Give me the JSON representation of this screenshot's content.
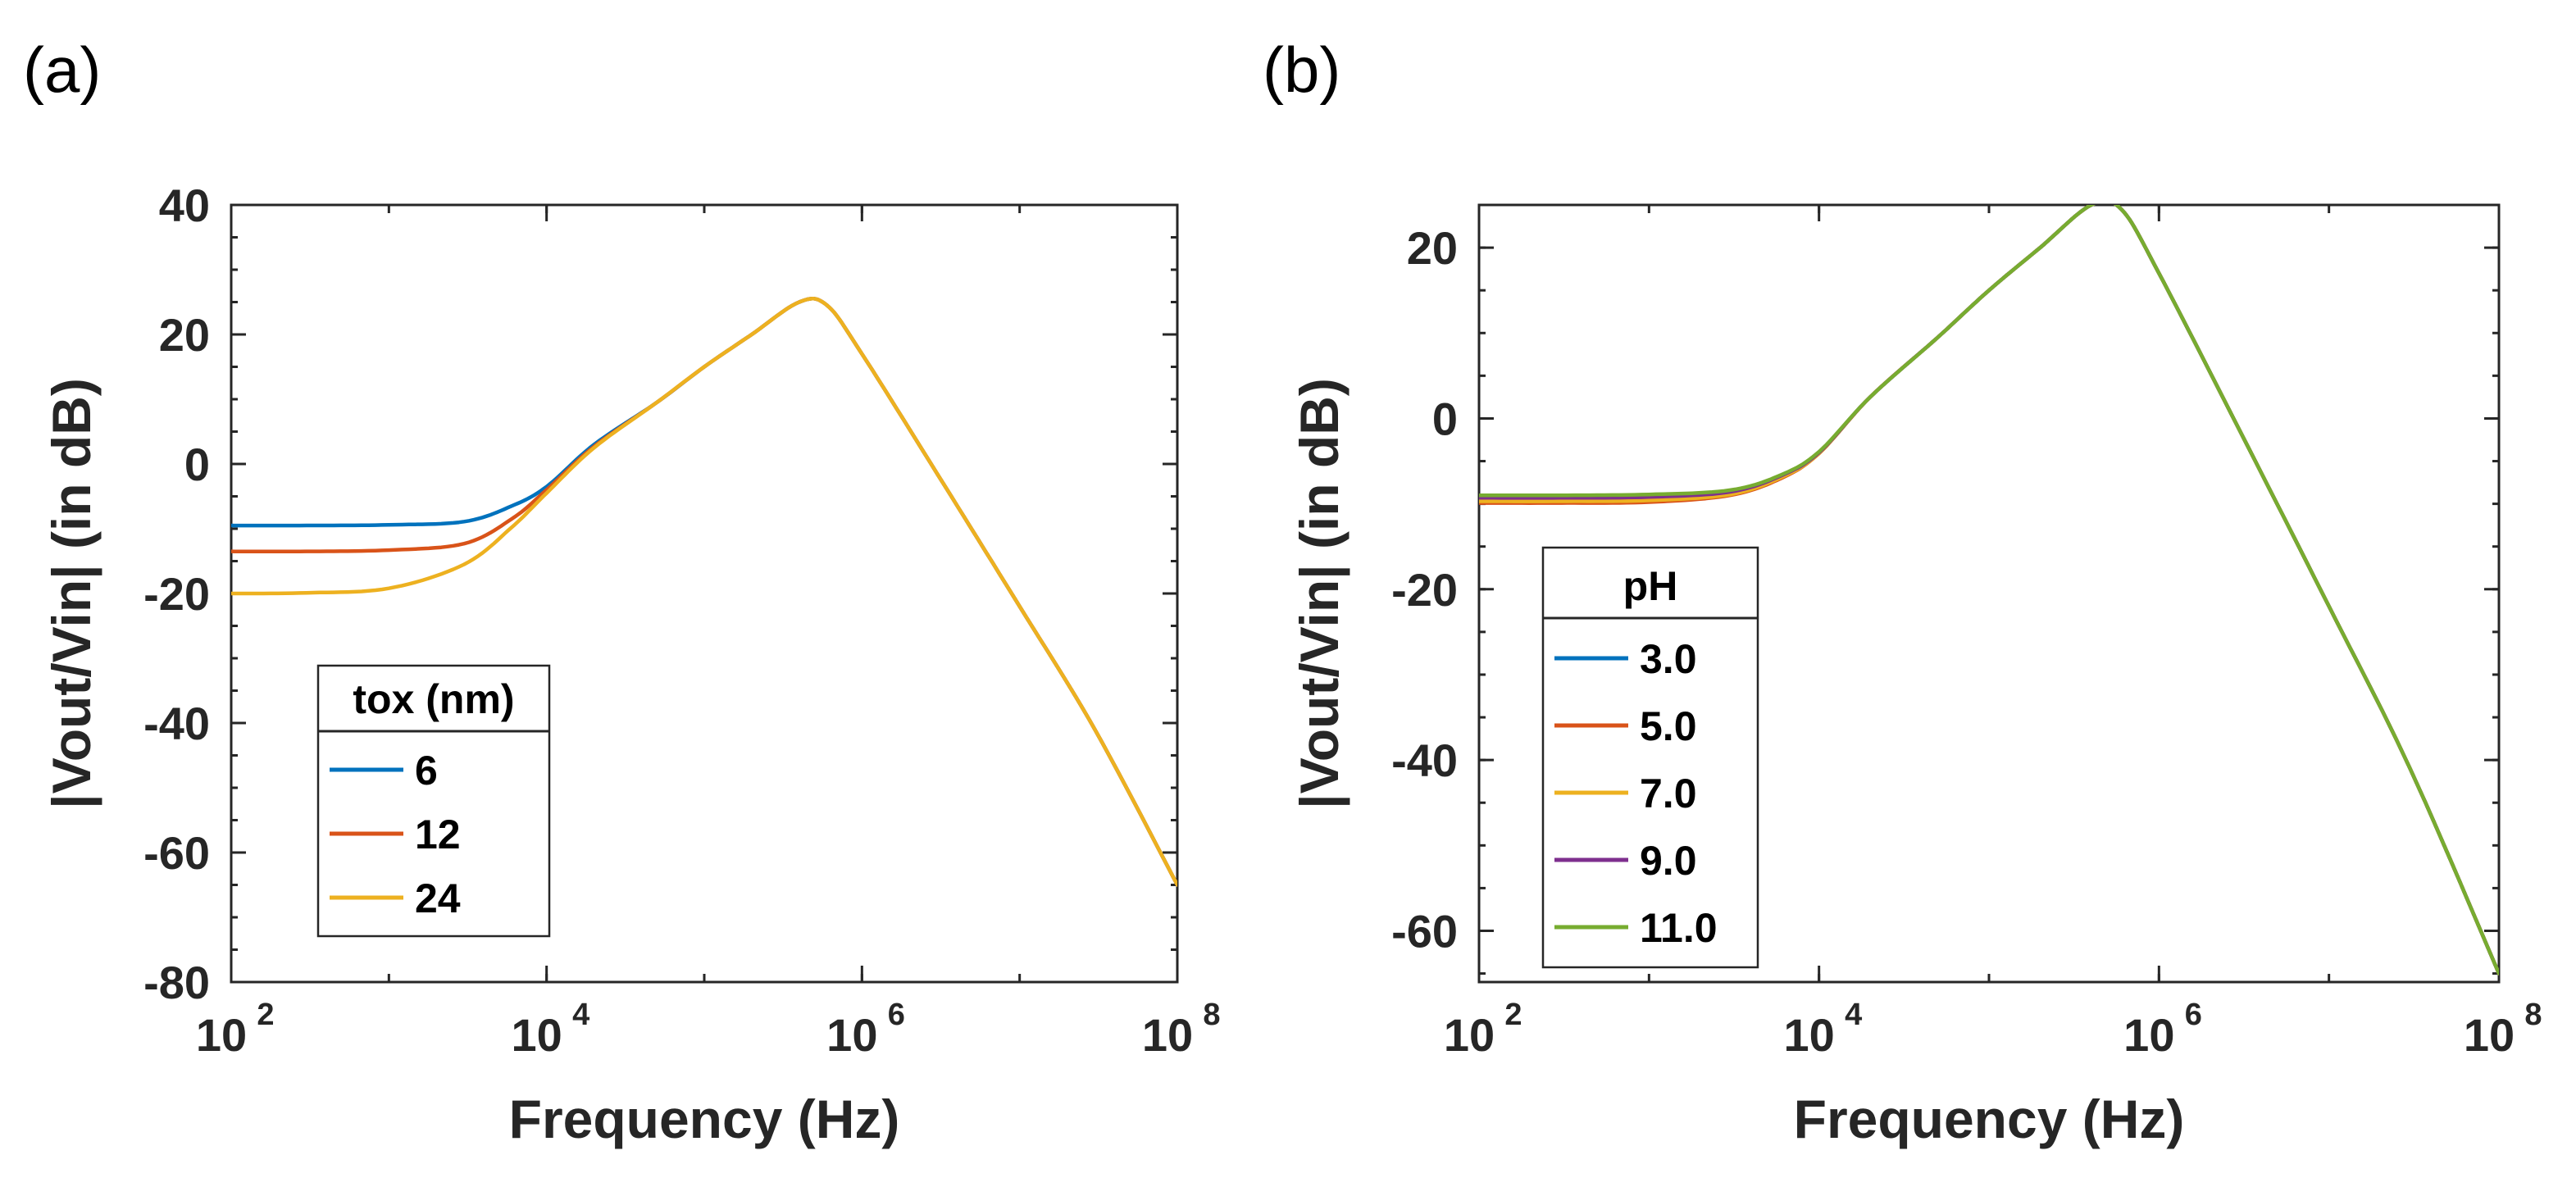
{
  "chart_data": [
    {
      "type": "line",
      "panel_label": "(a)",
      "xlabel": "Frequency (Hz)",
      "ylabel": "|Vout/Vin| (in dB)",
      "xscale": "log",
      "xlim": [
        100,
        100000000
      ],
      "ylim": [
        -80,
        40
      ],
      "xticks": [
        {
          "base": "10",
          "exp": "2",
          "value": 100
        },
        {
          "base": "10",
          "exp": "4",
          "value": 10000
        },
        {
          "base": "10",
          "exp": "6",
          "value": 1000000
        },
        {
          "base": "10",
          "exp": "8",
          "value": 100000000
        }
      ],
      "yticks": [
        {
          "label": "40",
          "value": 40
        },
        {
          "label": "20",
          "value": 20
        },
        {
          "label": "0",
          "value": 0
        },
        {
          "label": "-20",
          "value": -20
        },
        {
          "label": "-40",
          "value": -40
        },
        {
          "label": "-60",
          "value": -60
        },
        {
          "label": "-80",
          "value": -80
        }
      ],
      "legend": {
        "title": "tox (nm)",
        "placement": "lower-left"
      },
      "x": [
        100,
        300,
        1000,
        3000,
        6000,
        10000,
        20000,
        50000,
        100000,
        200000,
        400000,
        600000,
        1000000,
        3000000,
        10000000,
        30000000,
        100000000
      ],
      "series": [
        {
          "name": "6",
          "color": "#0072BD",
          "values": [
            -9.5,
            -9.5,
            -9.4,
            -8.9,
            -6.5,
            -3.5,
            3.0,
            9.5,
            15.0,
            20.0,
            25.0,
            24.5,
            17.0,
            -1.5,
            -22.0,
            -41.0,
            -65.0
          ]
        },
        {
          "name": "12",
          "color": "#D95319",
          "values": [
            -13.5,
            -13.5,
            -13.3,
            -12.3,
            -8.5,
            -4.0,
            2.7,
            9.5,
            15.0,
            20.0,
            25.0,
            24.5,
            17.0,
            -1.5,
            -22.0,
            -41.0,
            -65.0
          ]
        },
        {
          "name": "24",
          "color": "#EDB120",
          "values": [
            -20.0,
            -19.9,
            -19.2,
            -15.5,
            -9.8,
            -4.5,
            2.5,
            9.5,
            15.0,
            20.0,
            25.0,
            24.5,
            17.0,
            -1.5,
            -22.0,
            -41.0,
            -65.0
          ]
        }
      ]
    },
    {
      "type": "line",
      "panel_label": "(b)",
      "xlabel": "Frequency (Hz)",
      "ylabel": "|Vout/Vin| (in dB)",
      "xscale": "log",
      "xlim": [
        100,
        100000000
      ],
      "ylim": [
        -66,
        25
      ],
      "xticks": [
        {
          "base": "10",
          "exp": "2",
          "value": 100
        },
        {
          "base": "10",
          "exp": "4",
          "value": 10000
        },
        {
          "base": "10",
          "exp": "6",
          "value": 1000000
        },
        {
          "base": "10",
          "exp": "8",
          "value": 100000000
        }
      ],
      "yticks": [
        {
          "label": "20",
          "value": 20
        },
        {
          "label": "0",
          "value": 0
        },
        {
          "label": "-20",
          "value": -20
        },
        {
          "label": "-40",
          "value": -40
        },
        {
          "label": "-60",
          "value": -60
        }
      ],
      "legend": {
        "title": "pH",
        "placement": "lower-left"
      },
      "x": [
        100,
        300,
        1000,
        3000,
        6000,
        10000,
        20000,
        50000,
        100000,
        200000,
        400000,
        600000,
        1000000,
        3000000,
        10000000,
        30000000,
        100000000
      ],
      "series": [
        {
          "name": "3.0",
          "color": "#0072BD",
          "values": [
            -9.5,
            -9.5,
            -9.4,
            -8.7,
            -6.8,
            -4.0,
            2.5,
            9.5,
            15.0,
            20.0,
            25.0,
            24.5,
            17.0,
            -1.5,
            -22.0,
            -41.0,
            -65.0
          ]
        },
        {
          "name": "5.0",
          "color": "#D95319",
          "values": [
            -9.9,
            -9.9,
            -9.8,
            -9.0,
            -7.0,
            -4.1,
            2.5,
            9.5,
            15.0,
            20.0,
            25.0,
            24.5,
            17.0,
            -1.5,
            -22.0,
            -41.0,
            -65.0
          ]
        },
        {
          "name": "7.0",
          "color": "#EDB120",
          "values": [
            -9.7,
            -9.7,
            -9.6,
            -8.9,
            -6.9,
            -4.1,
            2.5,
            9.5,
            15.0,
            20.0,
            25.0,
            24.5,
            17.0,
            -1.5,
            -22.0,
            -41.0,
            -65.0
          ]
        },
        {
          "name": "9.0",
          "color": "#7E2F8E",
          "values": [
            -9.3,
            -9.3,
            -9.2,
            -8.6,
            -6.7,
            -4.0,
            2.5,
            9.5,
            15.0,
            20.0,
            25.0,
            24.5,
            17.0,
            -1.5,
            -22.0,
            -41.0,
            -65.0
          ]
        },
        {
          "name": "11.0",
          "color": "#77AC30",
          "values": [
            -9.0,
            -9.0,
            -8.9,
            -8.4,
            -6.6,
            -3.9,
            2.5,
            9.5,
            15.0,
            20.0,
            25.0,
            24.5,
            17.0,
            -1.5,
            -22.0,
            -41.0,
            -65.0
          ]
        }
      ]
    }
  ]
}
